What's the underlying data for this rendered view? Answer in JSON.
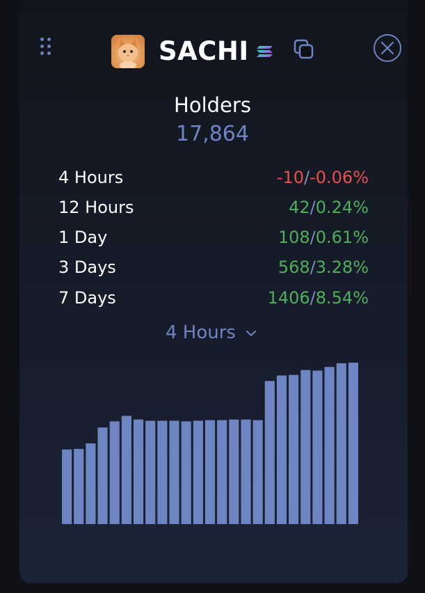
{
  "header": {
    "token_name": "SACHI",
    "icons": {
      "drag": "drag-handle-icon",
      "avatar": "cat-avatar",
      "chain": "solana-icon",
      "copy": "copy-icon",
      "close": "close-icon"
    }
  },
  "holders": {
    "label": "Holders",
    "value": "17,864"
  },
  "stats": [
    {
      "period": "4 Hours",
      "count": "-10",
      "percent": "-0.06%",
      "trend": "down"
    },
    {
      "period": "12 Hours",
      "count": "42",
      "percent": "0.24%",
      "trend": "up"
    },
    {
      "period": "1 Day",
      "count": "108",
      "percent": "0.61%",
      "trend": "up"
    },
    {
      "period": "3 Days",
      "count": "568",
      "percent": "3.28%",
      "trend": "up"
    },
    {
      "period": "7 Days",
      "count": "1406",
      "percent": "8.54%",
      "trend": "up"
    }
  ],
  "period_selector": {
    "selected": "4 Hours"
  },
  "colors": {
    "accent": "#6f84c2",
    "bar": "#6f84c2",
    "negative": "#e9504c",
    "positive": "#4fae5c",
    "background": "#0f1116"
  },
  "chart_data": {
    "type": "bar",
    "values": [
      61,
      61.5,
      66,
      79,
      84,
      88.5,
      85.5,
      84.5,
      84.5,
      84.5,
      84,
      84.5,
      85,
      85,
      85.5,
      85.5,
      85,
      117,
      121.5,
      122,
      126,
      125.5,
      128.5,
      131.5,
      132
    ],
    "ylim": [
      0,
      140
    ]
  }
}
